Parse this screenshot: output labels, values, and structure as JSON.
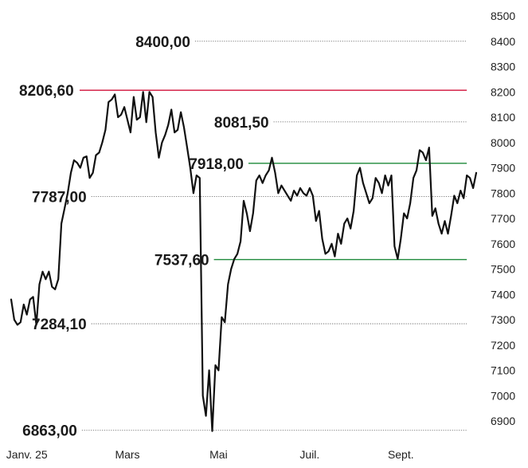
{
  "chart_data": {
    "type": "line",
    "y_ticks": [
      "8500",
      "8400",
      "8300",
      "8200",
      "8100",
      "8000",
      "7900",
      "7800",
      "7700",
      "7600",
      "7500",
      "7400",
      "7300",
      "7200",
      "7100",
      "7000",
      "6900"
    ],
    "y_tick_values": [
      8500,
      8400,
      8300,
      8200,
      8100,
      8000,
      7900,
      7800,
      7700,
      7600,
      7500,
      7400,
      7300,
      7200,
      7100,
      7000,
      6900
    ],
    "x_ticks": [
      "Janv. 25",
      "Mars",
      "Mai",
      "Juil.",
      "Sept."
    ],
    "x_tick_index": [
      5,
      37,
      66,
      95,
      124
    ],
    "annotations": [
      {
        "label": "8400,00",
        "value": 8400,
        "kind": "dotted",
        "color": "#1a1a1a",
        "label_idx": 57,
        "line_end_idx": 145
      },
      {
        "label": "8206,60",
        "value": 8206.6,
        "kind": "solid",
        "color": "#d0103a",
        "label_idx": 0,
        "line_end_idx": 145
      },
      {
        "label": "8081,50",
        "value": 8081.5,
        "kind": "dotted",
        "color": "#1a1a1a",
        "label_idx": 82,
        "line_end_idx": 145
      },
      {
        "label": "7918,00",
        "value": 7918,
        "kind": "solid",
        "color": "#1e8a3a",
        "label_idx": 74,
        "line_end_idx": 145
      },
      {
        "label": "7787,00",
        "value": 7787,
        "kind": "dotted",
        "color": "#1a1a1a",
        "label_idx": 24,
        "line_end_idx": 145
      },
      {
        "label": "7537,60",
        "value": 7537.6,
        "kind": "solid",
        "color": "#1e8a3a",
        "label_idx": 63,
        "line_end_idx": 145
      },
      {
        "label": "7284,10",
        "value": 7284.1,
        "kind": "dotted",
        "color": "#1a1a1a",
        "label_idx": 24,
        "line_end_idx": 145
      },
      {
        "label": "6863,00",
        "value": 6863,
        "kind": "dotted",
        "color": "#1a1a1a",
        "label_idx": 21,
        "line_end_idx": 145
      }
    ],
    "values": [
      7380,
      7300,
      7280,
      7290,
      7360,
      7320,
      7380,
      7390,
      7280,
      7440,
      7490,
      7460,
      7490,
      7430,
      7420,
      7460,
      7680,
      7740,
      7800,
      7880,
      7930,
      7920,
      7900,
      7940,
      7945,
      7860,
      7880,
      7950,
      7960,
      8000,
      8050,
      8160,
      8170,
      8190,
      8100,
      8110,
      8140,
      8090,
      8040,
      8180,
      8090,
      8100,
      8200,
      8080,
      8200,
      8180,
      8040,
      7940,
      8000,
      8030,
      8070,
      8130,
      8040,
      8050,
      8120,
      8060,
      7980,
      7900,
      7800,
      7870,
      7860,
      7000,
      6920,
      7100,
      6860,
      7120,
      7100,
      7310,
      7290,
      7440,
      7500,
      7540,
      7560,
      7610,
      7770,
      7720,
      7650,
      7720,
      7850,
      7870,
      7840,
      7870,
      7890,
      7940,
      7880,
      7800,
      7830,
      7810,
      7790,
      7770,
      7810,
      7790,
      7820,
      7800,
      7790,
      7820,
      7790,
      7690,
      7730,
      7620,
      7560,
      7570,
      7600,
      7550,
      7640,
      7600,
      7680,
      7700,
      7660,
      7730,
      7870,
      7900,
      7840,
      7800,
      7760,
      7780,
      7860,
      7840,
      7800,
      7870,
      7830,
      7870,
      7590,
      7540,
      7620,
      7720,
      7700,
      7760,
      7860,
      7890,
      7970,
      7960,
      7930,
      7980,
      7710,
      7740,
      7680,
      7640,
      7690,
      7640,
      7710,
      7790,
      7760,
      7810,
      7780,
      7870,
      7860,
      7820,
      7880
    ]
  }
}
